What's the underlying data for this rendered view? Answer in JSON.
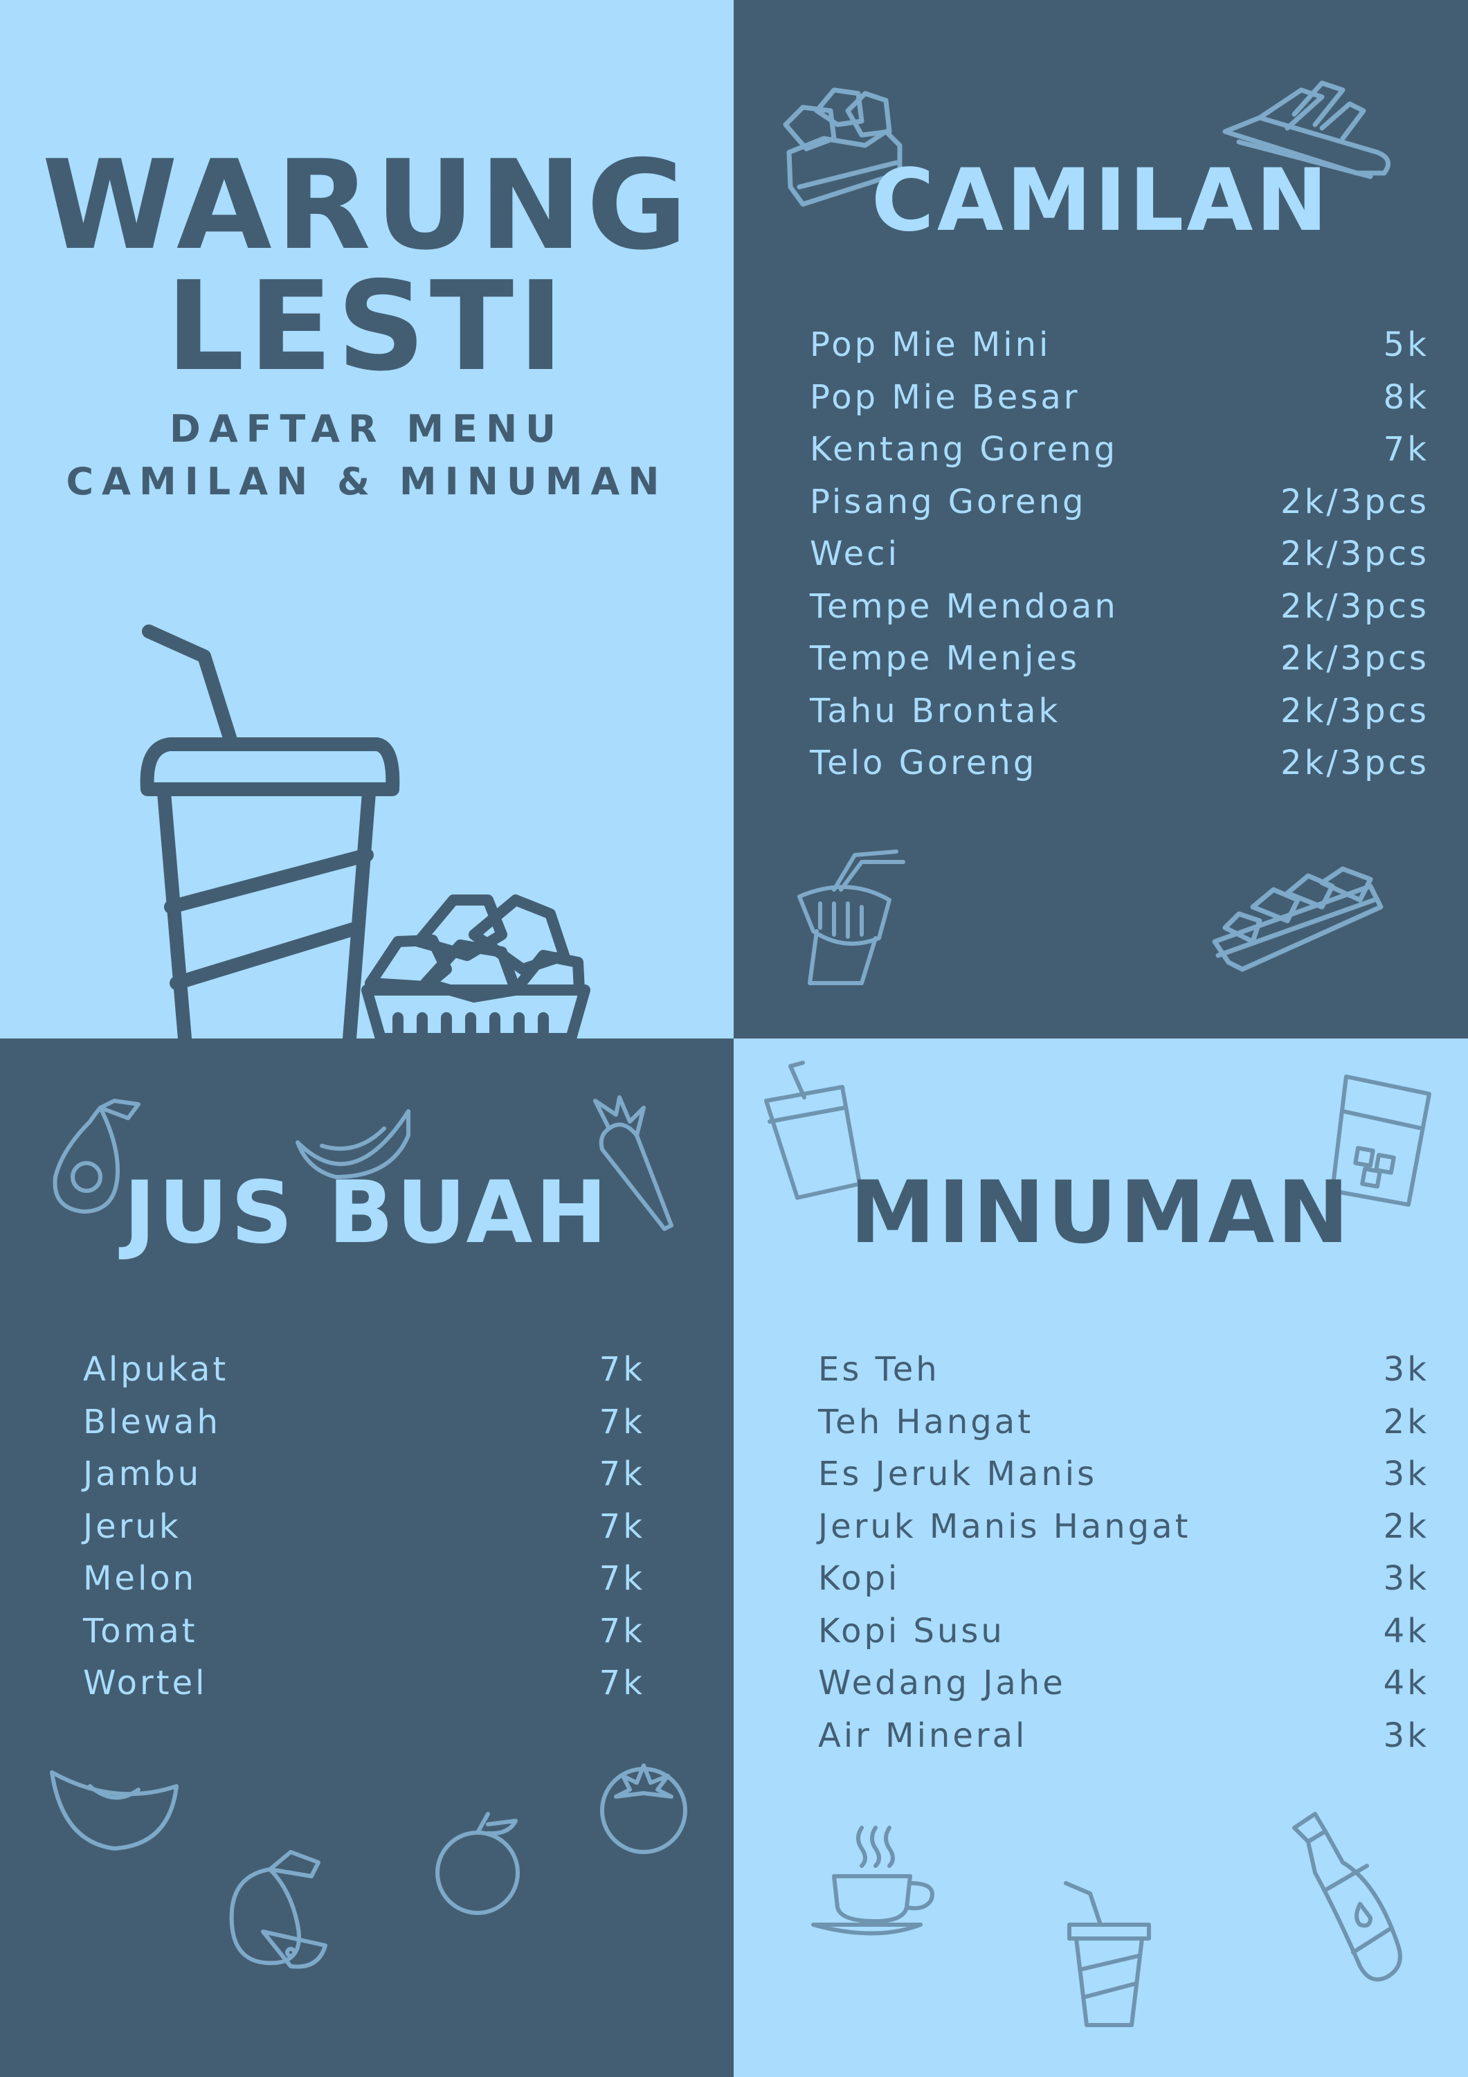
{
  "header": {
    "title_line1": "WARUNG",
    "title_line2": "LESTI",
    "subtitle_line1": "DAFTAR MENU",
    "subtitle_line2": "CAMILAN & MINUMAN"
  },
  "camilan": {
    "heading": "CAMILAN",
    "items": [
      {
        "name": "Pop Mie Mini",
        "price": "5k"
      },
      {
        "name": "Pop Mie Besar",
        "price": "8k"
      },
      {
        "name": "Kentang Goreng",
        "price": "7k"
      },
      {
        "name": "Pisang Goreng",
        "price": "2k/3pcs"
      },
      {
        "name": "Weci",
        "price": "2k/3pcs"
      },
      {
        "name": "Tempe Mendoan",
        "price": "2k/3pcs"
      },
      {
        "name": "Tempe Menjes",
        "price": "2k/3pcs"
      },
      {
        "name": "Tahu Brontak",
        "price": "2k/3pcs"
      },
      {
        "name": "Telo Goreng",
        "price": "2k/3pcs"
      }
    ]
  },
  "jus_buah": {
    "heading": "JUS BUAH",
    "items": [
      {
        "name": "Alpukat",
        "price": "7k"
      },
      {
        "name": "Blewah",
        "price": "7k"
      },
      {
        "name": "Jambu",
        "price": "7k"
      },
      {
        "name": "Jeruk",
        "price": "7k"
      },
      {
        "name": "Melon",
        "price": "7k"
      },
      {
        "name": "Tomat",
        "price": "7k"
      },
      {
        "name": "Wortel",
        "price": "7k"
      }
    ]
  },
  "minuman": {
    "heading": "MINUMAN",
    "items": [
      {
        "name": "Es Teh",
        "price": "3k"
      },
      {
        "name": "Teh Hangat",
        "price": "2k"
      },
      {
        "name": "Es Jeruk Manis",
        "price": "3k"
      },
      {
        "name": "Jeruk Manis Hangat",
        "price": "2k"
      },
      {
        "name": "Kopi",
        "price": "3k"
      },
      {
        "name": "Kopi Susu",
        "price": "4k"
      },
      {
        "name": "Wedang Jahe",
        "price": "4k"
      },
      {
        "name": "Air Mineral",
        "price": "3k"
      }
    ]
  },
  "colors": {
    "light_blue": "#a9dcfd",
    "dark_slate": "#435e73"
  },
  "icons": [
    "cup-with-straw-icon",
    "fried-snacks-icon",
    "noodle-cup-icon",
    "fries-icon",
    "avocado-icon",
    "melon-slice-icon",
    "carrot-icon",
    "guava-icon",
    "orange-icon",
    "tomato-icon",
    "iced-glass-icon",
    "coffee-cup-icon",
    "bottle-icon"
  ]
}
